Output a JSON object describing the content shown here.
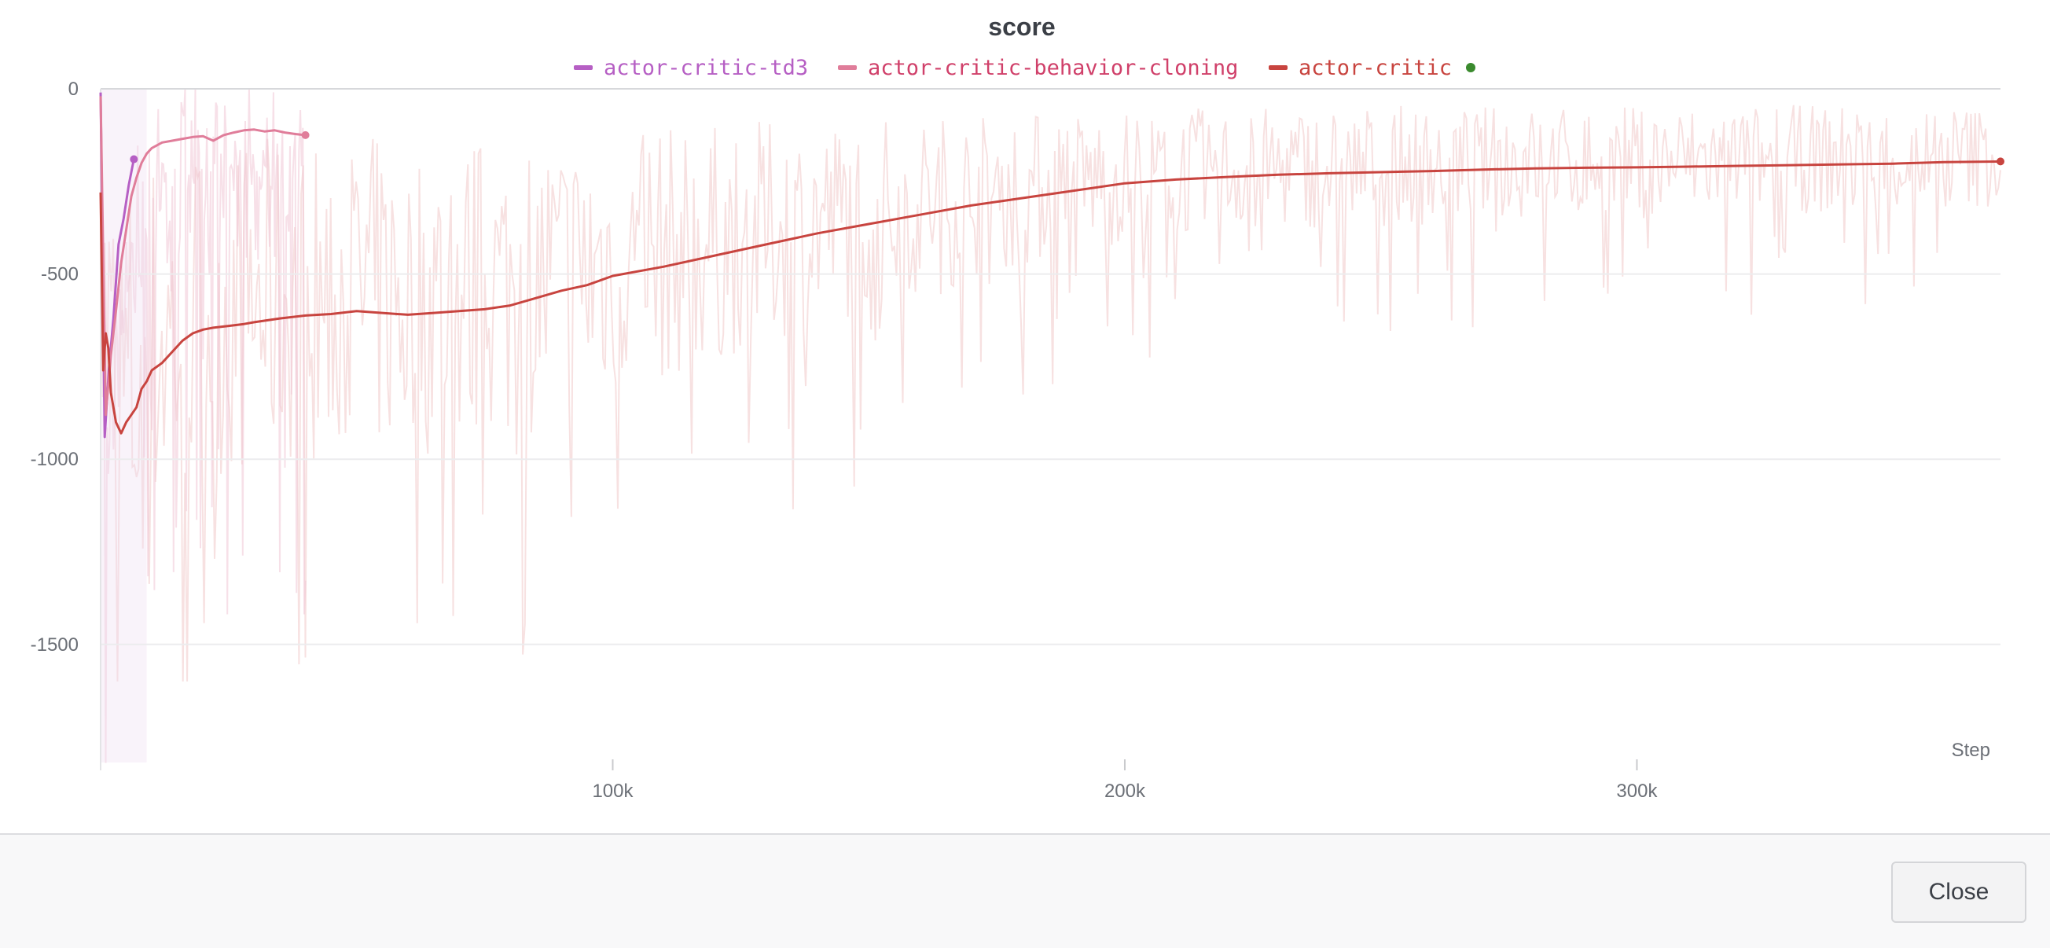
{
  "chart_data": {
    "type": "line",
    "title": "score",
    "xlabel": "Step",
    "ylabel": "",
    "xlim": [
      0,
      371000
    ],
    "ylim": [
      -1840,
      0
    ],
    "x_ticks": [
      {
        "value": 100000,
        "label": "100k"
      },
      {
        "value": 200000,
        "label": "200k"
      },
      {
        "value": 300000,
        "label": "300k"
      }
    ],
    "y_ticks": [
      {
        "value": 0,
        "label": "0"
      },
      {
        "value": -500,
        "label": "-500"
      },
      {
        "value": -1000,
        "label": "-1000"
      },
      {
        "value": -1500,
        "label": "-1500"
      }
    ],
    "grid": true,
    "legend_position": "top-center",
    "series": [
      {
        "name": "actor-critic-td3",
        "color": "#b65fc4",
        "x": [
          0,
          800,
          1600,
          2500,
          3500,
          4500,
          5500,
          6500
        ],
        "y": [
          -10,
          -940,
          -760,
          -620,
          -420,
          -350,
          -260,
          -190
        ]
      },
      {
        "name": "actor-critic-behavior-cloning",
        "color": "#e07d9a",
        "x": [
          0,
          1000,
          2000,
          3000,
          4000,
          5000,
          6000,
          7000,
          8000,
          9000,
          10000,
          12000,
          14000,
          16000,
          18000,
          20000,
          22000,
          24000,
          26000,
          28000,
          30000,
          32000,
          34000,
          36000,
          38000,
          40000
        ],
        "y": [
          -20,
          -880,
          -720,
          -600,
          -470,
          -380,
          -290,
          -240,
          -200,
          -175,
          -160,
          -145,
          -140,
          -135,
          -130,
          -128,
          -140,
          -125,
          -118,
          -112,
          -110,
          -115,
          -112,
          -118,
          -122,
          -125
        ]
      },
      {
        "name": "actor-critic",
        "color": "#c8443f",
        "x": [
          0,
          500,
          1000,
          1500,
          2000,
          2500,
          3000,
          4000,
          5000,
          6000,
          7000,
          8000,
          9000,
          10000,
          12000,
          14000,
          16000,
          18000,
          20000,
          22000,
          25000,
          28000,
          30000,
          35000,
          40000,
          45000,
          50000,
          55000,
          60000,
          65000,
          70000,
          75000,
          80000,
          85000,
          90000,
          95000,
          100000,
          110000,
          120000,
          130000,
          140000,
          150000,
          160000,
          170000,
          180000,
          190000,
          200000,
          210000,
          220000,
          230000,
          240000,
          250000,
          260000,
          270000,
          280000,
          290000,
          300000,
          310000,
          320000,
          330000,
          340000,
          350000,
          360000,
          371000
        ],
        "y": [
          -280,
          -760,
          -660,
          -700,
          -820,
          -860,
          -900,
          -930,
          -900,
          -880,
          -860,
          -810,
          -790,
          -760,
          -740,
          -710,
          -680,
          -660,
          -650,
          -645,
          -640,
          -635,
          -630,
          -620,
          -612,
          -608,
          -600,
          -605,
          -610,
          -605,
          -600,
          -595,
          -585,
          -565,
          -545,
          -530,
          -505,
          -480,
          -450,
          -420,
          -390,
          -365,
          -340,
          -315,
          -295,
          -275,
          -255,
          -245,
          -238,
          -232,
          -228,
          -225,
          -222,
          -218,
          -215,
          -213,
          -212,
          -210,
          -208,
          -206,
          -204,
          -202,
          -198,
          -196
        ]
      }
    ]
  },
  "footer": {
    "close_label": "Close"
  }
}
